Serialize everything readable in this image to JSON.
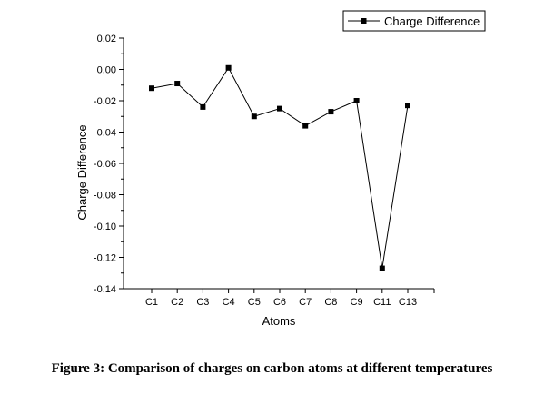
{
  "caption": "Figure 3: Comparison of charges on carbon atoms at different temperatures",
  "chart_data": {
    "type": "line",
    "categories": [
      "C1",
      "C2",
      "C3",
      "C4",
      "C5",
      "C6",
      "C7",
      "C8",
      "C9",
      "C11",
      "C13"
    ],
    "series": [
      {
        "name": "Charge Difference",
        "values": [
          -0.012,
          -0.009,
          -0.024,
          0.001,
          -0.03,
          -0.025,
          -0.036,
          -0.027,
          -0.02,
          -0.127,
          -0.023
        ],
        "color": "#000000",
        "marker": "square"
      }
    ],
    "title": "",
    "xlabel": "Atoms",
    "ylabel": "Charge Difference",
    "ylim": [
      -0.14,
      0.02
    ],
    "yticks": [
      0.02,
      0.0,
      -0.02,
      -0.04,
      -0.06,
      -0.08,
      -0.1,
      -0.12,
      -0.14
    ],
    "yticklabels": [
      "0.02",
      "0.00",
      "-0.02",
      "-0.04",
      "-0.06",
      "-0.08",
      "-0.10",
      "-0.12",
      "-0.14"
    ],
    "grid": false,
    "legend_position": "top-right"
  }
}
